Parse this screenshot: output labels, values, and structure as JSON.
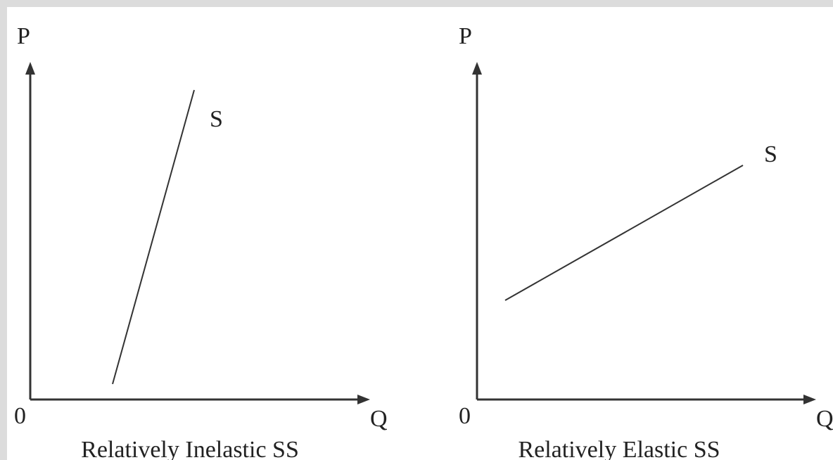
{
  "panels": [
    {
      "y_axis_label": "P",
      "x_axis_label": "Q",
      "origin_label": "0",
      "curve_label": "S",
      "caption": "Relatively Inelastic SS"
    },
    {
      "y_axis_label": "P",
      "x_axis_label": "Q",
      "origin_label": "0",
      "curve_label": "S",
      "caption": "Relatively Elastic SS"
    }
  ]
}
